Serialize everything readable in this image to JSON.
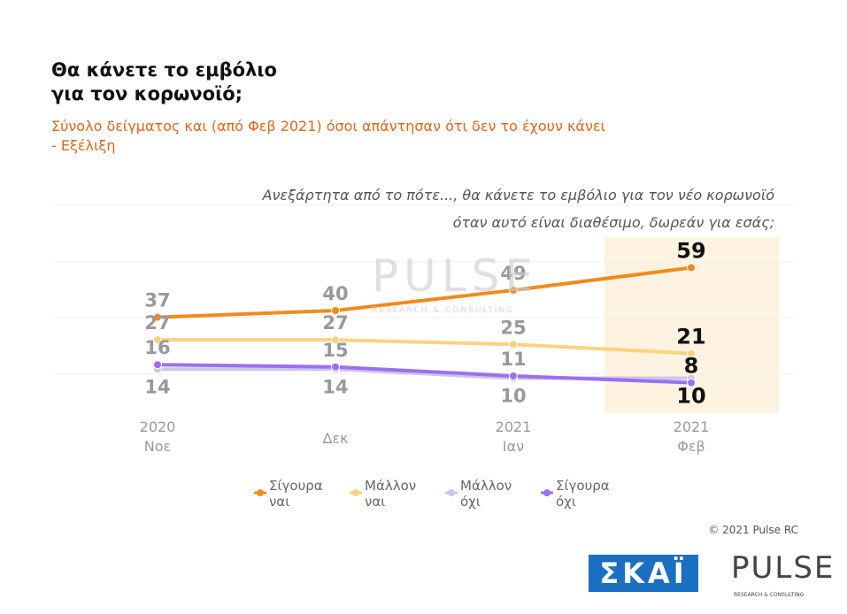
{
  "chart_data": {
    "type": "line",
    "title": "Θα κάνετε το εμβόλιο\nγια τον κορωνοϊό;",
    "subtitle": "Σύνολο δείγματος και (από Φεβ 2021) όσοι απάντησαν ότι δεν το έχουν κάνει\n - Εξέλιξη",
    "annotation": "Ανεξάρτητα από το πότε..., θα κάνετε το εμβόλιο για τον νέο κορωνοϊό\nόταν αυτό είναι διαθέσιμο, δωρεάν για εσάς;",
    "categories": [
      "2020\nΝοε",
      "Δεκ",
      "2021\nΙαν",
      "2021\nΦεβ"
    ],
    "series": [
      {
        "name": "Σίγουρα ναι",
        "color": "#f28a1d",
        "values": [
          37,
          40,
          49,
          59
        ]
      },
      {
        "name": "Μάλλον ναι",
        "color": "#fdd27f",
        "values": [
          27,
          27,
          25,
          21
        ]
      },
      {
        "name": "Μάλλον όχι",
        "color": "#cfc5e8",
        "values": [
          14,
          14,
          10,
          10
        ]
      },
      {
        "name": "Σίγουρα όχι",
        "color": "#9b6ff0",
        "values": [
          16,
          15,
          11,
          8
        ]
      }
    ],
    "ylim": [
      0,
      100
    ],
    "copyright": "© 2021 Pulse RC",
    "logos": {
      "skai": "ΣΚΑΪ",
      "pulse": "PULSE",
      "pulse_sub": "RESEARCH & CONSULTING"
    }
  }
}
